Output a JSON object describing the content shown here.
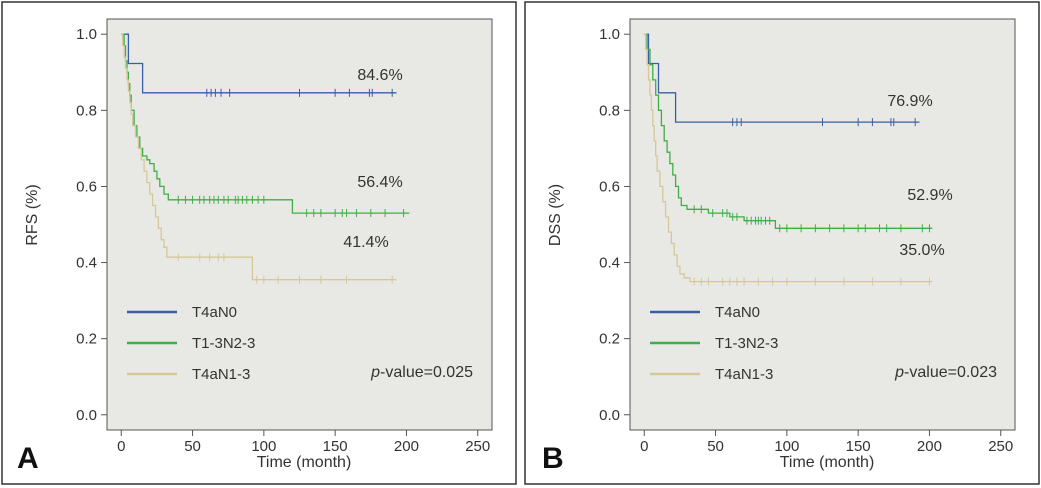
{
  "colors": {
    "plot_bg": "#e8e9e4",
    "panel_border": "#333333",
    "axis": "#555555",
    "T4aN0": "#3a5ea8",
    "T1-3N2-3": "#3fae49",
    "T4aN1-3": "#d5c79a"
  },
  "chart_data": [
    {
      "type": "line",
      "subtype": "kaplan-meier",
      "panel": "A",
      "xlabel": "Time (month)",
      "ylabel": "RFS (%)",
      "xlim": [
        -10,
        260
      ],
      "ylim": [
        -0.04,
        1.04
      ],
      "xticks": [
        0,
        50,
        100,
        150,
        200,
        250
      ],
      "yticks": [
        0.0,
        0.2,
        0.4,
        0.6,
        0.8,
        1.0
      ],
      "ytick_labels": [
        "0.0",
        "0.2",
        "0.4",
        "0.6",
        "0.8",
        "1.0"
      ],
      "legend_position": "bottom-left",
      "pvalue": {
        "prefix": "p",
        "text": "-value=0.025"
      },
      "series": [
        {
          "name": "T4aN0",
          "color_key": "T4aN0",
          "end_label": "84.6%",
          "steps": [
            [
              0,
              1.0
            ],
            [
              5,
              0.923
            ],
            [
              15,
              0.846
            ],
            [
              193,
              0.846
            ]
          ],
          "censors": [
            [
              60,
              0.846
            ],
            [
              63,
              0.846
            ],
            [
              66,
              0.846
            ],
            [
              70,
              0.846
            ],
            [
              76,
              0.846
            ],
            [
              125,
              0.846
            ],
            [
              150,
              0.846
            ],
            [
              160,
              0.846
            ],
            [
              174,
              0.846
            ],
            [
              176,
              0.846
            ],
            [
              190,
              0.846
            ]
          ]
        },
        {
          "name": "T1-3N2-3",
          "color_key": "T1-3N2-3",
          "end_label": "56.4%",
          "steps": [
            [
              0,
              1.0
            ],
            [
              2,
              0.97
            ],
            [
              3,
              0.93
            ],
            [
              4,
              0.9
            ],
            [
              5,
              0.87
            ],
            [
              6,
              0.84
            ],
            [
              7,
              0.8
            ],
            [
              9,
              0.76
            ],
            [
              11,
              0.73
            ],
            [
              13,
              0.7
            ],
            [
              15,
              0.68
            ],
            [
              18,
              0.67
            ],
            [
              20,
              0.66
            ],
            [
              23,
              0.64
            ],
            [
              25,
              0.62
            ],
            [
              27,
              0.6
            ],
            [
              30,
              0.58
            ],
            [
              33,
              0.565
            ],
            [
              120,
              0.53
            ],
            [
              202,
              0.53
            ]
          ],
          "censors": [
            [
              40,
              0.565
            ],
            [
              45,
              0.565
            ],
            [
              50,
              0.565
            ],
            [
              55,
              0.565
            ],
            [
              58,
              0.565
            ],
            [
              62,
              0.565
            ],
            [
              65,
              0.565
            ],
            [
              68,
              0.565
            ],
            [
              72,
              0.565
            ],
            [
              75,
              0.565
            ],
            [
              80,
              0.565
            ],
            [
              82,
              0.565
            ],
            [
              85,
              0.565
            ],
            [
              88,
              0.565
            ],
            [
              92,
              0.565
            ],
            [
              96,
              0.565
            ],
            [
              100,
              0.565
            ],
            [
              130,
              0.53
            ],
            [
              135,
              0.53
            ],
            [
              140,
              0.53
            ],
            [
              150,
              0.53
            ],
            [
              155,
              0.53
            ],
            [
              158,
              0.53
            ],
            [
              165,
              0.53
            ],
            [
              175,
              0.53
            ],
            [
              185,
              0.53
            ],
            [
              198,
              0.53
            ]
          ]
        },
        {
          "name": "T4aN1-3",
          "color_key": "T4aN1-3",
          "end_label": "41.4%",
          "steps": [
            [
              0,
              1.0
            ],
            [
              1,
              0.97
            ],
            [
              2,
              0.94
            ],
            [
              3,
              0.91
            ],
            [
              4,
              0.88
            ],
            [
              5,
              0.85
            ],
            [
              6,
              0.82
            ],
            [
              7,
              0.79
            ],
            [
              8,
              0.76
            ],
            [
              10,
              0.73
            ],
            [
              12,
              0.7
            ],
            [
              14,
              0.67
            ],
            [
              16,
              0.64
            ],
            [
              18,
              0.61
            ],
            [
              20,
              0.58
            ],
            [
              22,
              0.55
            ],
            [
              24,
              0.52
            ],
            [
              26,
              0.49
            ],
            [
              28,
              0.46
            ],
            [
              30,
              0.44
            ],
            [
              32,
              0.414
            ],
            [
              92,
              0.355
            ],
            [
              193,
              0.355
            ]
          ],
          "censors": [
            [
              40,
              0.414
            ],
            [
              55,
              0.414
            ],
            [
              62,
              0.414
            ],
            [
              68,
              0.414
            ],
            [
              72,
              0.414
            ],
            [
              95,
              0.355
            ],
            [
              100,
              0.355
            ],
            [
              110,
              0.355
            ],
            [
              125,
              0.355
            ],
            [
              140,
              0.355
            ],
            [
              158,
              0.355
            ],
            [
              190,
              0.355
            ]
          ]
        }
      ]
    },
    {
      "type": "line",
      "subtype": "kaplan-meier",
      "panel": "B",
      "xlabel": "Time (month)",
      "ylabel": "DSS (%)",
      "xlim": [
        -10,
        260
      ],
      "ylim": [
        -0.04,
        1.04
      ],
      "xticks": [
        0,
        50,
        100,
        150,
        200,
        250
      ],
      "yticks": [
        0.0,
        0.2,
        0.4,
        0.6,
        0.8,
        1.0
      ],
      "ytick_labels": [
        "0.0",
        "0.2",
        "0.4",
        "0.6",
        "0.8",
        "1.0"
      ],
      "legend_position": "bottom-left",
      "pvalue": {
        "prefix": "p",
        "text": "-value=0.023"
      },
      "series": [
        {
          "name": "T4aN0",
          "color_key": "T4aN0",
          "end_label": "76.9%",
          "steps": [
            [
              0,
              1.0
            ],
            [
              3,
              0.923
            ],
            [
              10,
              0.846
            ],
            [
              22,
              0.769
            ],
            [
              193,
              0.769
            ]
          ],
          "censors": [
            [
              62,
              0.769
            ],
            [
              65,
              0.769
            ],
            [
              68,
              0.769
            ],
            [
              125,
              0.769
            ],
            [
              150,
              0.769
            ],
            [
              160,
              0.769
            ],
            [
              173,
              0.769
            ],
            [
              175,
              0.769
            ],
            [
              190,
              0.769
            ]
          ]
        },
        {
          "name": "T1-3N2-3",
          "color_key": "T1-3N2-3",
          "end_label": "52.9%",
          "steps": [
            [
              0,
              1.0
            ],
            [
              2,
              0.96
            ],
            [
              4,
              0.92
            ],
            [
              6,
              0.88
            ],
            [
              8,
              0.84
            ],
            [
              10,
              0.8
            ],
            [
              12,
              0.76
            ],
            [
              14,
              0.72
            ],
            [
              16,
              0.69
            ],
            [
              18,
              0.66
            ],
            [
              20,
              0.63
            ],
            [
              22,
              0.6
            ],
            [
              24,
              0.57
            ],
            [
              26,
              0.55
            ],
            [
              30,
              0.54
            ],
            [
              45,
              0.53
            ],
            [
              60,
              0.52
            ],
            [
              70,
              0.51
            ],
            [
              92,
              0.49
            ],
            [
              202,
              0.49
            ]
          ],
          "censors": [
            [
              35,
              0.54
            ],
            [
              40,
              0.54
            ],
            [
              48,
              0.53
            ],
            [
              55,
              0.53
            ],
            [
              58,
              0.53
            ],
            [
              62,
              0.52
            ],
            [
              65,
              0.52
            ],
            [
              72,
              0.51
            ],
            [
              75,
              0.51
            ],
            [
              78,
              0.51
            ],
            [
              80,
              0.51
            ],
            [
              82,
              0.51
            ],
            [
              85,
              0.51
            ],
            [
              88,
              0.51
            ],
            [
              95,
              0.49
            ],
            [
              100,
              0.49
            ],
            [
              110,
              0.49
            ],
            [
              120,
              0.49
            ],
            [
              130,
              0.49
            ],
            [
              140,
              0.49
            ],
            [
              150,
              0.49
            ],
            [
              155,
              0.49
            ],
            [
              165,
              0.49
            ],
            [
              170,
              0.49
            ],
            [
              180,
              0.49
            ],
            [
              195,
              0.49
            ],
            [
              200,
              0.49
            ]
          ]
        },
        {
          "name": "T4aN1-3",
          "color_key": "T4aN1-3",
          "end_label": "35.0%",
          "steps": [
            [
              0,
              1.0
            ],
            [
              1,
              0.96
            ],
            [
              2,
              0.92
            ],
            [
              3,
              0.88
            ],
            [
              4,
              0.84
            ],
            [
              5,
              0.8
            ],
            [
              6,
              0.76
            ],
            [
              7,
              0.72
            ],
            [
              8,
              0.68
            ],
            [
              9,
              0.64
            ],
            [
              11,
              0.6
            ],
            [
              13,
              0.56
            ],
            [
              15,
              0.52
            ],
            [
              17,
              0.48
            ],
            [
              19,
              0.45
            ],
            [
              21,
              0.42
            ],
            [
              23,
              0.39
            ],
            [
              25,
              0.37
            ],
            [
              28,
              0.36
            ],
            [
              32,
              0.35
            ],
            [
              202,
              0.35
            ]
          ],
          "censors": [
            [
              35,
              0.35
            ],
            [
              40,
              0.35
            ],
            [
              45,
              0.35
            ],
            [
              55,
              0.35
            ],
            [
              60,
              0.35
            ],
            [
              65,
              0.35
            ],
            [
              70,
              0.35
            ],
            [
              80,
              0.35
            ],
            [
              90,
              0.35
            ],
            [
              100,
              0.35
            ],
            [
              120,
              0.35
            ],
            [
              140,
              0.35
            ],
            [
              160,
              0.35
            ],
            [
              180,
              0.35
            ],
            [
              200,
              0.35
            ]
          ]
        }
      ]
    }
  ]
}
